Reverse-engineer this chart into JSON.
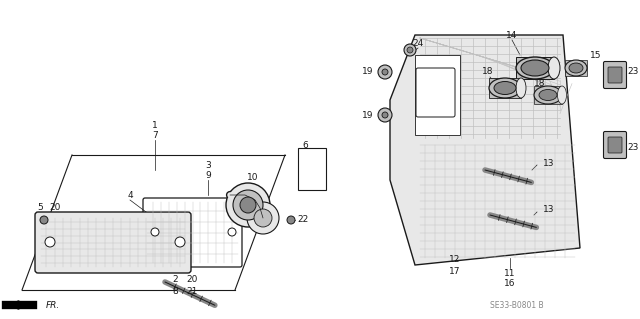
{
  "bg_color": "#ffffff",
  "fig_width": 6.4,
  "fig_height": 3.19,
  "dpi": 100,
  "part_code": "SE33-B0801 B",
  "fr_label": "FR.",
  "line_color": "#1a1a1a",
  "text_color": "#1a1a1a",
  "label_fontsize": 6.5,
  "part_code_fontsize": 5.5,
  "gray_light": "#e8e8e8",
  "gray_mid": "#c0c0c0",
  "gray_dark": "#888888",
  "gray_lens": "#d8d8d8"
}
